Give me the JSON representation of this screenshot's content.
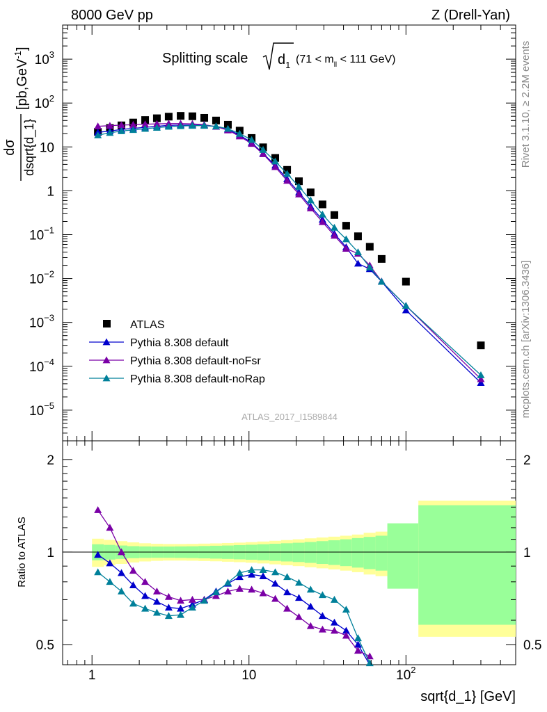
{
  "header": {
    "left": "8000 GeV pp",
    "right": "Z (Drell-Yan)"
  },
  "side_text": {
    "rivet": "Rivet 3.1.10, ≥ 2.2M events",
    "mcplots": "mcplots.cern.ch [arXiv:1306.3436]"
  },
  "footer_label": "ATLAS_2017_I1589844",
  "colors": {
    "atlas": "#000000",
    "default": "#0000cc",
    "noFsr": "#7a00a6",
    "noRap": "#00809a",
    "band_inner": "#99ff99",
    "band_outer": "#ffff99"
  },
  "chart_data": [
    {
      "type": "scatter",
      "panel": "main",
      "title": "Splitting scale √d₁ (71 < mₗₗ < 111 GeV)",
      "title_parts": {
        "main": "Splitting scale",
        "var": "d",
        "sub": "1",
        "range": "(71 < m",
        "range_sub": "ll",
        "range_end": " < 111 GeV)"
      },
      "xlabel": "sqrt{d_1} [GeV]",
      "ylabel": "dσ / dsqrt{d_1} [pb,GeV⁻¹]",
      "ylabel_parts": {
        "num": "dσ",
        "den": "dsqrt{d_1}",
        "unit": "[pb,GeV",
        "exp": "-1",
        "unit_end": "]"
      },
      "x_scale": "log",
      "y_scale": "log",
      "xlim": [
        0.65,
        500
      ],
      "ylim": [
        2e-06,
        6000
      ],
      "x_ticks": [
        {
          "v": 1,
          "label": "1"
        },
        {
          "v": 10,
          "label": "10"
        },
        {
          "v": 100,
          "label": "10",
          "sup": "2"
        }
      ],
      "y_ticks": [
        {
          "v": 1e-05,
          "base": "10",
          "sup": "−5"
        },
        {
          "v": 0.0001,
          "base": "10",
          "sup": "−4"
        },
        {
          "v": 0.001,
          "base": "10",
          "sup": "−3"
        },
        {
          "v": 0.01,
          "base": "10",
          "sup": "−2"
        },
        {
          "v": 0.1,
          "base": "10",
          "sup": "−1"
        },
        {
          "v": 1,
          "base": "1",
          "sup": ""
        },
        {
          "v": 10,
          "base": "10",
          "sup": ""
        },
        {
          "v": 100,
          "base": "10",
          "sup": "2"
        },
        {
          "v": 1000,
          "base": "10",
          "sup": "3"
        }
      ],
      "legend": {
        "placement": "lower-left",
        "entries": [
          {
            "name": "ATLAS",
            "marker": "square",
            "color": "#000000"
          },
          {
            "name": "Pythia 8.308 default",
            "marker": "triangle",
            "color": "#0000cc"
          },
          {
            "name": "Pythia 8.308 default-noFsr",
            "marker": "triangle",
            "color": "#7a00a6"
          },
          {
            "name": "Pythia 8.308 default-noRap",
            "marker": "triangle",
            "color": "#00809a"
          }
        ]
      },
      "x": [
        1.09,
        1.3,
        1.54,
        1.83,
        2.18,
        2.59,
        3.08,
        3.67,
        4.36,
        5.19,
        6.17,
        7.34,
        8.72,
        10.4,
        12.3,
        14.7,
        17.5,
        20.8,
        24.7,
        29.4,
        35.0,
        41.6,
        49.5,
        58.8,
        70.0,
        100,
        300
      ],
      "series": [
        {
          "name": "ATLAS",
          "color": "#000000",
          "marker": "square",
          "values": [
            22,
            27,
            31,
            36,
            41,
            45,
            49,
            51,
            50,
            46,
            40,
            32,
            23.5,
            16,
            9.8,
            5.6,
            3.0,
            1.65,
            0.92,
            0.49,
            0.28,
            0.16,
            0.092,
            0.053,
            0.028,
            0.0085,
            0.0003
          ]
        },
        {
          "name": "Pythia 8.308 default",
          "color": "#0000cc",
          "marker": "triangle",
          "values": [
            21.5,
            23,
            25,
            26.5,
            28,
            29.5,
            31,
            31.5,
            31.5,
            31,
            29,
            25,
            18.5,
            12.5,
            7.1,
            3.8,
            1.85,
            0.92,
            0.44,
            0.22,
            0.105,
            0.052,
            0.022,
            0.0165,
            0.0085,
            0.0019,
            4.2e-05
          ]
        },
        {
          "name": "Pythia 8.308 default-noFsr",
          "color": "#7a00a6",
          "marker": "triangle",
          "values": [
            29.5,
            30.5,
            31.5,
            32,
            33,
            33.5,
            34,
            34,
            33.5,
            32,
            29,
            24,
            17.5,
            11.8,
            6.9,
            3.5,
            1.7,
            0.83,
            0.4,
            0.195,
            0.095,
            0.048,
            0.037,
            0.02,
            0.0086,
            0.0024,
            5.1e-05
          ]
        },
        {
          "name": "Pythia 8.308 default-noRap",
          "color": "#00809a",
          "marker": "triangle",
          "values": [
            18.5,
            21,
            23,
            24.5,
            26,
            27.5,
            29,
            30,
            30.5,
            30.5,
            29.5,
            26,
            20,
            14.5,
            8.6,
            4.7,
            2.45,
            1.24,
            0.61,
            0.29,
            0.145,
            0.079,
            0.04,
            0.018,
            0.0085,
            0.0024,
            6.3e-05
          ]
        }
      ]
    },
    {
      "type": "line",
      "panel": "ratio",
      "ylabel": "Ratio to ATLAS",
      "x_scale": "log",
      "xlim": [
        0.65,
        500
      ],
      "ylim": [
        0.43,
        2.3
      ],
      "y_ticks": [
        {
          "v": 0.5,
          "label": "0.5"
        },
        {
          "v": 1,
          "label": "1"
        },
        {
          "v": 2,
          "label": "2"
        }
      ],
      "reference_line": 1,
      "uncertainty_band": {
        "edges": [
          1.0,
          1.19,
          1.41,
          1.68,
          2.0,
          2.38,
          2.83,
          3.36,
          4.0,
          4.76,
          5.66,
          6.73,
          8.0,
          9.51,
          11.3,
          13.5,
          16.0,
          19.0,
          22.6,
          26.9,
          32.0,
          38.1,
          45.3,
          53.8,
          64.0,
          76.1,
          120,
          500
        ],
        "inner_half_width": [
          0.06,
          0.055,
          0.05,
          0.045,
          0.043,
          0.042,
          0.042,
          0.043,
          0.044,
          0.046,
          0.048,
          0.05,
          0.053,
          0.056,
          0.06,
          0.064,
          0.068,
          0.072,
          0.078,
          0.085,
          0.092,
          0.1,
          0.11,
          0.12,
          0.13,
          0.24,
          0.42
        ],
        "outer_half_width": [
          0.105,
          0.095,
          0.085,
          0.075,
          0.068,
          0.064,
          0.062,
          0.062,
          0.063,
          0.065,
          0.067,
          0.07,
          0.073,
          0.077,
          0.082,
          0.088,
          0.094,
          0.1,
          0.108,
          0.115,
          0.122,
          0.13,
          0.14,
          0.155,
          0.165,
          0.22,
          0.47
        ]
      },
      "x": [
        1.09,
        1.3,
        1.54,
        1.83,
        2.18,
        2.59,
        3.08,
        3.67,
        4.36,
        5.19,
        6.17,
        7.34,
        8.72,
        10.4,
        12.3,
        14.7,
        17.5,
        20.8,
        24.7,
        29.4,
        35.0,
        41.6,
        49.5,
        58.8
      ],
      "series": [
        {
          "name": "Pythia 8.308 default",
          "color": "#0000cc",
          "values": [
            0.98,
            0.92,
            0.855,
            0.78,
            0.72,
            0.69,
            0.66,
            0.655,
            0.675,
            0.7,
            0.745,
            0.79,
            0.83,
            0.845,
            0.835,
            0.79,
            0.74,
            0.71,
            0.665,
            0.62,
            0.59,
            0.555,
            0.5,
            0.43
          ]
        },
        {
          "name": "Pythia 8.308 default-noFsr",
          "color": "#7a00a6",
          "values": [
            1.37,
            1.2,
            1.0,
            0.87,
            0.8,
            0.745,
            0.715,
            0.695,
            0.7,
            0.7,
            0.72,
            0.745,
            0.76,
            0.755,
            0.735,
            0.705,
            0.655,
            0.615,
            0.575,
            0.56,
            0.555,
            0.535,
            0.478,
            0.458
          ]
        },
        {
          "name": "Pythia 8.308 default-noRap",
          "color": "#00809a",
          "values": [
            0.86,
            0.8,
            0.745,
            0.68,
            0.655,
            0.635,
            0.62,
            0.625,
            0.66,
            0.695,
            0.74,
            0.795,
            0.855,
            0.875,
            0.875,
            0.86,
            0.83,
            0.795,
            0.755,
            0.725,
            0.7,
            0.65,
            0.525,
            0.435
          ]
        }
      ]
    }
  ]
}
